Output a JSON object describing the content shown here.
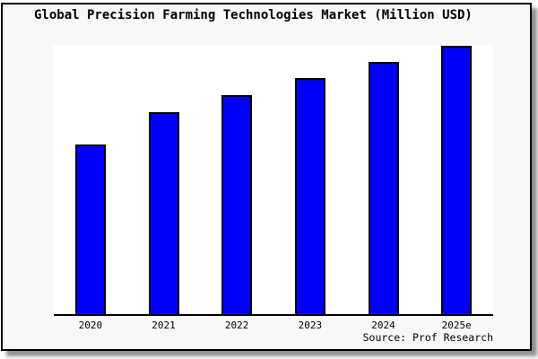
{
  "figure": {
    "title": "Global Precision Farming Technologies Market (Million USD)",
    "source_note": "Source: Prof Research",
    "colors": {
      "bar_fill": "#0000ff",
      "bar_border": "#000000",
      "figure_background": "#f8f8f8",
      "plot_background": "#ffffff",
      "axis_line": "#000000",
      "text": "#000000"
    }
  },
  "chart_data": {
    "type": "bar",
    "title": "Global Precision Farming Technologies Market (Million USD)",
    "categories": [
      "2020",
      "2021",
      "2022",
      "2023",
      "2024",
      "2025e"
    ],
    "values": [
      0.63,
      0.75,
      0.813,
      0.877,
      0.937,
      0.997
    ],
    "values_note": "relative bar heights as fraction of plot height; the chart displays no numeric y-axis tick labels",
    "xlabel": "",
    "ylabel": "",
    "ylim": [
      0,
      1
    ],
    "grid": false,
    "legend": false,
    "y_axis_ticks_visible": false,
    "annotations": [
      "Source: Prof Research"
    ]
  }
}
